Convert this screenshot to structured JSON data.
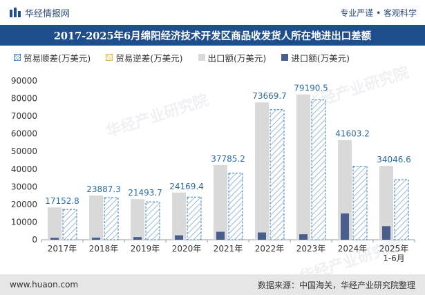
{
  "header": {
    "brand": "华经情报网",
    "tagline": "专业严谨 • 客观科学"
  },
  "title": "2017-2025年6月绵阳经济技术开发区商品收发货人所在地进出口差额",
  "legend": [
    {
      "key": "surplus",
      "label": "贸易顺差(万美元)"
    },
    {
      "key": "deficit",
      "label": "贸易逆差(万美元)"
    },
    {
      "key": "export",
      "label": "出口额(万美元)"
    },
    {
      "key": "import",
      "label": "进口额(万美元)"
    }
  ],
  "footer": {
    "url": "www.huaon.com",
    "source": "数据来源：中国海关，华经产业研究院整理"
  },
  "watermark": "华经产业研究院",
  "colors": {
    "surplus": "#3a7bbf",
    "surplus_hatch": "#6a9ad0",
    "deficit": "#e0b030",
    "export": "#d9d9d9",
    "import": "#4a5e8c",
    "title_bg": "#1f4e8c",
    "label": "#2a6aa8"
  },
  "chart_data": {
    "type": "bar",
    "title": "2017-2025年6月绵阳经济技术开发区商品收发货人所在地进出口差额",
    "categories": [
      "2017年",
      "2018年",
      "2019年",
      "2020年",
      "2021年",
      "2022年",
      "2023年",
      "2024年",
      "2025年\n1-6月"
    ],
    "series": [
      {
        "name": "贸易顺差(万美元)",
        "values": [
          17152.8,
          23887.3,
          21493.7,
          24169.4,
          37785.2,
          73669.7,
          79190.5,
          41603.2,
          34046.6
        ]
      },
      {
        "name": "贸易逆差(万美元)",
        "values": [
          0,
          0,
          0,
          0,
          0,
          0,
          0,
          0,
          0
        ]
      },
      {
        "name": "出口额(万美元)",
        "values": [
          18300,
          25000,
          23000,
          26700,
          42300,
          77800,
          82300,
          56500,
          41800
        ]
      },
      {
        "name": "进口额(万美元)",
        "values": [
          1100,
          1200,
          1500,
          2500,
          4500,
          4100,
          3100,
          14900,
          7700
        ]
      }
    ],
    "data_labels": [
      "17152.8",
      "23887.3",
      "21493.7",
      "24169.4",
      "37785.2",
      "73669.7",
      "79190.5",
      "41603.2",
      "34046.6"
    ],
    "yticks": [
      "0",
      "10000",
      "20000",
      "30000",
      "40000",
      "50000",
      "60000",
      "70000",
      "80000",
      "90000"
    ],
    "ylim": [
      0,
      90000
    ],
    "xlabel": "",
    "ylabel": "",
    "grid": false,
    "legend_position": "top"
  }
}
